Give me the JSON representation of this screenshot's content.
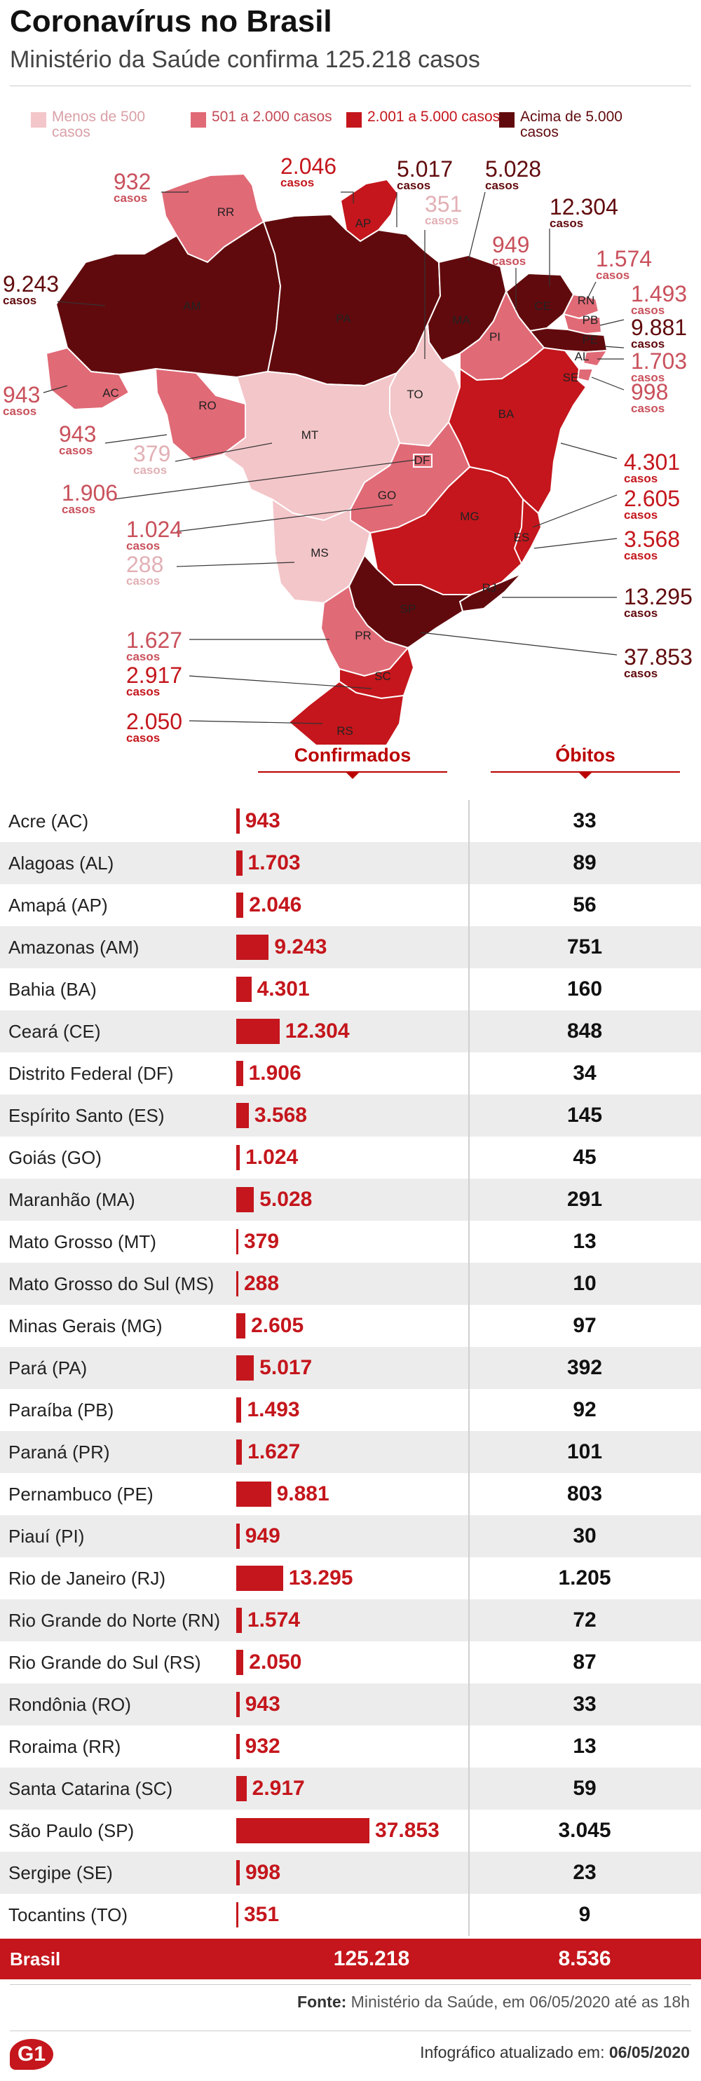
{
  "header": {
    "title": "Coronavírus no Brasil",
    "subtitle": "Ministério da Saúde confirma 125.218 casos"
  },
  "colors": {
    "cat1": "#f3c6c9",
    "cat2": "#e06a76",
    "cat3": "#c4161c",
    "cat4": "#610a0d"
  },
  "legend": [
    {
      "label": "Menos de 500 casos",
      "color": "#f3c6c9"
    },
    {
      "label": "501 a 2.000 casos",
      "color": "#e06a76"
    },
    {
      "label": "2.001 a 5.000 casos",
      "color": "#c4161c"
    },
    {
      "label": "Acima de 5.000 casos",
      "color": "#610a0d"
    }
  ],
  "map": {
    "casos_label": "casos",
    "states": [
      {
        "code": "AC",
        "value": "943",
        "cat": 2
      },
      {
        "code": "AL",
        "value": "1.703",
        "cat": 2
      },
      {
        "code": "AP",
        "value": "2.046",
        "cat": 3
      },
      {
        "code": "AM",
        "value": "9.243",
        "cat": 4
      },
      {
        "code": "BA",
        "value": "4.301",
        "cat": 3
      },
      {
        "code": "CE",
        "value": "12.304",
        "cat": 4
      },
      {
        "code": "DF",
        "value": "1.906",
        "cat": 2
      },
      {
        "code": "ES",
        "value": "3.568",
        "cat": 3
      },
      {
        "code": "GO",
        "value": "1.024",
        "cat": 2
      },
      {
        "code": "MA",
        "value": "5.028",
        "cat": 4
      },
      {
        "code": "MT",
        "value": "379",
        "cat": 1
      },
      {
        "code": "MS",
        "value": "288",
        "cat": 1
      },
      {
        "code": "MG",
        "value": "2.605",
        "cat": 3
      },
      {
        "code": "PA",
        "value": "5.017",
        "cat": 4
      },
      {
        "code": "PB",
        "value": "1.493",
        "cat": 2
      },
      {
        "code": "PR",
        "value": "1.627",
        "cat": 2
      },
      {
        "code": "PE",
        "value": "9.881",
        "cat": 4
      },
      {
        "code": "PI",
        "value": "949",
        "cat": 2
      },
      {
        "code": "RJ",
        "value": "13.295",
        "cat": 4
      },
      {
        "code": "RN",
        "value": "1.574",
        "cat": 2
      },
      {
        "code": "RS",
        "value": "2.050",
        "cat": 3
      },
      {
        "code": "RO",
        "value": "943",
        "cat": 2
      },
      {
        "code": "RR",
        "value": "932",
        "cat": 2
      },
      {
        "code": "SC",
        "value": "2.917",
        "cat": 3
      },
      {
        "code": "SP",
        "value": "37.853",
        "cat": 4
      },
      {
        "code": "SE",
        "value": "998",
        "cat": 2
      },
      {
        "code": "TO",
        "value": "351",
        "cat": 1
      }
    ]
  },
  "table": {
    "col_confirmados": "Confirmados",
    "col_obitos": "Óbitos"
  },
  "chart_data": {
    "type": "bar",
    "categories": [
      "Acre (AC)",
      "Alagoas (AL)",
      "Amapá (AP)",
      "Amazonas (AM)",
      "Bahia (BA)",
      "Ceará (CE)",
      "Distrito Federal (DF)",
      "Espírito Santo (ES)",
      "Goiás (GO)",
      "Maranhão (MA)",
      "Mato Grosso (MT)",
      "Mato Grosso do Sul (MS)",
      "Minas Gerais (MG)",
      "Pará (PA)",
      "Paraíba (PB)",
      "Paraná (PR)",
      "Pernambuco (PE)",
      "Piauí (PI)",
      "Rio de Janeiro (RJ)",
      "Rio Grande do Norte (RN)",
      "Rio Grande do Sul (RS)",
      "Rondônia (RO)",
      "Roraima (RR)",
      "Santa Catarina (SC)",
      "São Paulo (SP)",
      "Sergipe (SE)",
      "Tocantins (TO)"
    ],
    "series": [
      {
        "name": "Confirmados",
        "values": [
          943,
          1703,
          2046,
          9243,
          4301,
          12304,
          1906,
          3568,
          1024,
          5028,
          379,
          288,
          2605,
          5017,
          1493,
          1627,
          9881,
          949,
          13295,
          1574,
          2050,
          943,
          932,
          2917,
          37853,
          998,
          351
        ],
        "labels": [
          "943",
          "1.703",
          "2.046",
          "9.243",
          "4.301",
          "12.304",
          "1.906",
          "3.568",
          "1.024",
          "5.028",
          "379",
          "288",
          "2.605",
          "5.017",
          "1.493",
          "1.627",
          "9.881",
          "949",
          "13.295",
          "1.574",
          "2.050",
          "943",
          "932",
          "2.917",
          "37.853",
          "998",
          "351"
        ]
      },
      {
        "name": "Óbitos",
        "values": [
          33,
          89,
          56,
          751,
          160,
          848,
          34,
          145,
          45,
          291,
          13,
          10,
          97,
          392,
          92,
          101,
          803,
          30,
          1205,
          72,
          87,
          33,
          13,
          59,
          3045,
          23,
          9
        ],
        "labels": [
          "33",
          "89",
          "56",
          "751",
          "160",
          "848",
          "34",
          "145",
          "45",
          "291",
          "13",
          "10",
          "97",
          "392",
          "92",
          "101",
          "803",
          "30",
          "1.205",
          "72",
          "87",
          "33",
          "13",
          "59",
          "3.045",
          "23",
          "9"
        ]
      }
    ],
    "total": {
      "label": "Brasil",
      "confirmados": "125.218",
      "obitos": "8.536"
    }
  },
  "footer": {
    "fonte_label": "Fonte:",
    "fonte_text": "Ministério da Saúde, em 06/05/2020 até as 18h",
    "logo": "G1",
    "updated_label": "Infográfico atualizado em:",
    "updated_date": "06/05/2020"
  }
}
